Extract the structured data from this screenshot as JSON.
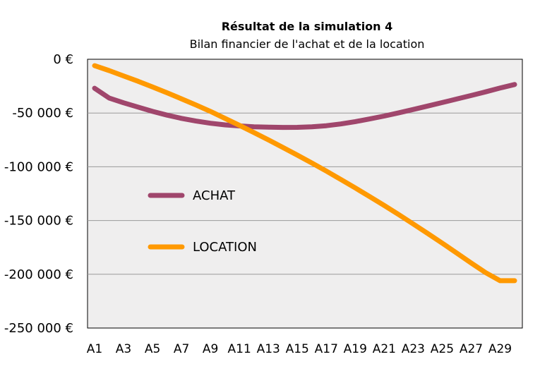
{
  "chart_data": {
    "type": "line",
    "title": "Résultat de la simulation 4",
    "subtitle": "Bilan financier de l'achat et de la location",
    "xlabel": "",
    "ylabel": "",
    "x": [
      "A1",
      "A2",
      "A3",
      "A4",
      "A5",
      "A6",
      "A7",
      "A8",
      "A9",
      "A10",
      "A11",
      "A12",
      "A13",
      "A14",
      "A15",
      "A16",
      "A17",
      "A18",
      "A19",
      "A20",
      "A21",
      "A22",
      "A23",
      "A24",
      "A25",
      "A26",
      "A27",
      "A28",
      "A29",
      "A30"
    ],
    "x_tick_labels": [
      "A1",
      "A3",
      "A5",
      "A7",
      "A9",
      "A11",
      "A13",
      "A15",
      "A17",
      "A19",
      "A21",
      "A23",
      "A25",
      "A27",
      "A29"
    ],
    "ylim": [
      -250000,
      0
    ],
    "y_ticks": [
      0,
      -50000,
      -100000,
      -150000,
      -200000,
      -250000
    ],
    "y_tick_labels": [
      "0 €",
      "-50 000 €",
      "-100 000 €",
      "-150 000 €",
      "-200 000 €",
      "-250 000 €"
    ],
    "grid": true,
    "legend_position": "left-middle inside plot",
    "series": [
      {
        "name": "ACHAT",
        "color": "#a0466c",
        "values": [
          -27000,
          -36000,
          -40500,
          -44500,
          -48500,
          -52000,
          -55000,
          -57500,
          -59500,
          -61000,
          -62000,
          -62800,
          -63200,
          -63400,
          -63300,
          -62800,
          -61800,
          -60200,
          -58000,
          -55500,
          -52800,
          -49800,
          -46700,
          -43500,
          -40300,
          -37000,
          -33700,
          -30300,
          -26800,
          -23500
        ]
      },
      {
        "name": "LOCATION",
        "color": "#ff9900",
        "values": [
          -6000,
          -10500,
          -15500,
          -20500,
          -25800,
          -31200,
          -36800,
          -42500,
          -48500,
          -55000,
          -61500,
          -68200,
          -75000,
          -82000,
          -89200,
          -96500,
          -104000,
          -111800,
          -119700,
          -127800,
          -136000,
          -144500,
          -153200,
          -162000,
          -171000,
          -180200,
          -189500,
          -198500,
          -206000,
          -206000
        ]
      }
    ]
  }
}
